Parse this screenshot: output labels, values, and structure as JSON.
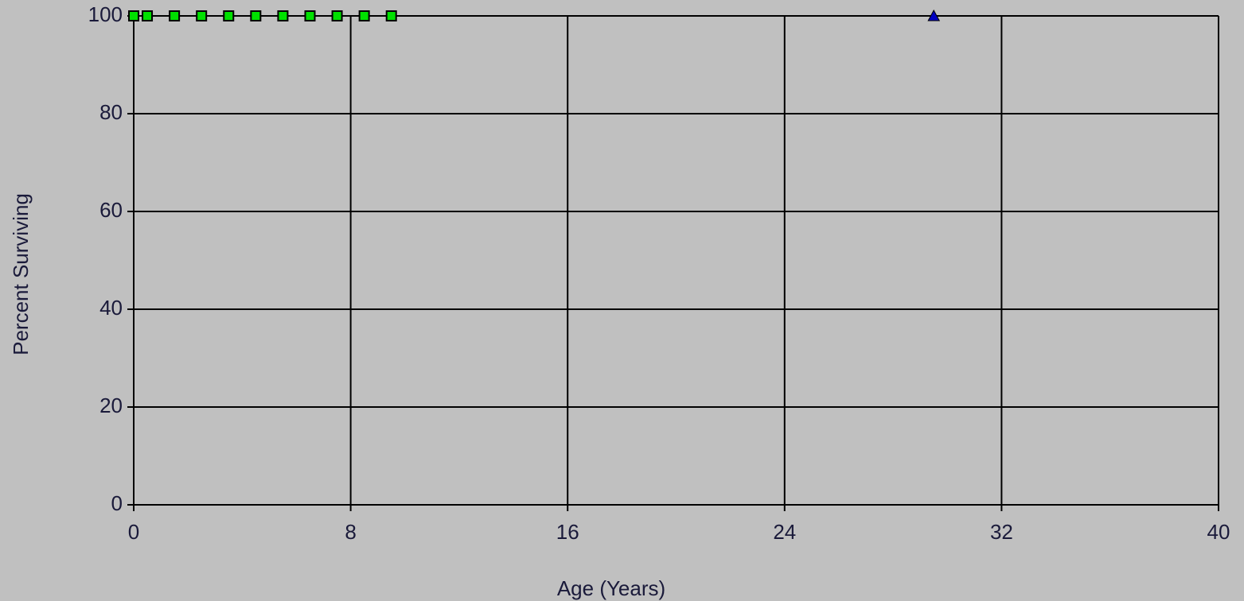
{
  "chart_data": {
    "type": "line",
    "x_label": "Age (Years)",
    "y_label": "Percent Surviving",
    "xlim": [
      0,
      40
    ],
    "xticks": [
      0,
      8,
      16,
      24,
      32,
      40
    ],
    "ylim": [
      0,
      100
    ],
    "yticks": [
      0,
      20,
      40,
      60,
      80,
      100
    ],
    "grid": true,
    "series": [
      {
        "color": "#00e000",
        "marker": "square",
        "connect": true,
        "x": [
          0,
          0.5,
          1.5,
          2.5,
          3.5,
          4.5,
          5.5,
          6.5,
          7.5,
          8.5,
          9.5
        ],
        "values": [
          100,
          100,
          100,
          100,
          100,
          100,
          100,
          100,
          100,
          100,
          100
        ]
      },
      {
        "color": "#0000c0",
        "marker": "triangle",
        "connect": false,
        "x": [
          29.5
        ],
        "values": [
          100
        ]
      }
    ]
  }
}
